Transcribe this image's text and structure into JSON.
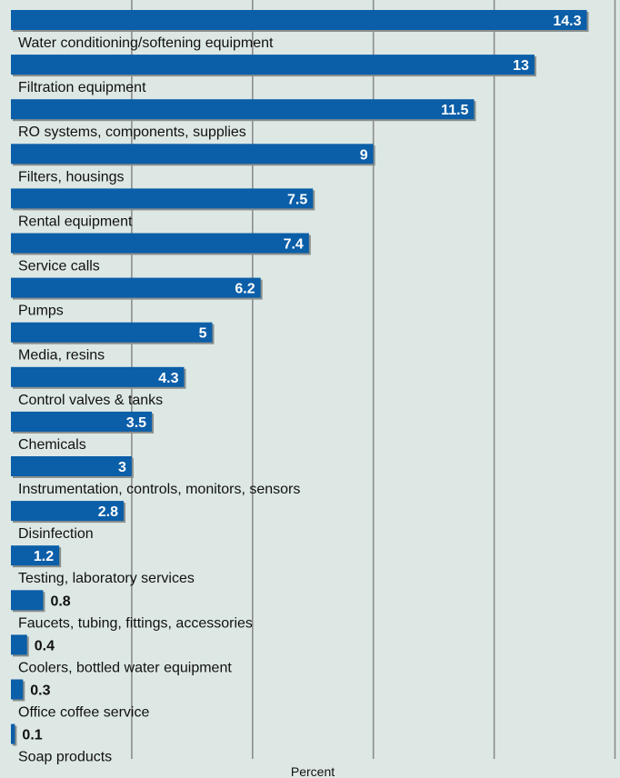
{
  "chart_data": {
    "type": "bar",
    "orientation": "horizontal",
    "xlabel": "Percent",
    "ylabel": "",
    "title": "",
    "xlim": [
      0,
      16.1
    ],
    "grid": "vertical",
    "colors": {
      "background": "#dde8e5",
      "bar": "#0b5ea8",
      "bar_shadow": "#8a8f8c",
      "grid": "#8c8c8c"
    },
    "categories": [
      "Water conditioning/softening equipment",
      "Filtration equipment",
      "RO systems, components, supplies",
      "Filters, housings",
      "Rental equipment",
      "Service calls",
      "Pumps",
      "Media, resins",
      "Control valves & tanks",
      "Chemicals",
      "Instrumentation, controls, monitors, sensors",
      "Disinfection",
      "Testing, laboratory services",
      "Faucets, tubing, fittings, accessories",
      "Coolers, bottled water equipment",
      "Office coffee service",
      "Soap products"
    ],
    "values": [
      14.3,
      13,
      11.5,
      9,
      7.5,
      7.4,
      6.2,
      5,
      4.3,
      3.5,
      3,
      2.8,
      1.2,
      0.8,
      0.4,
      0.3,
      0.1
    ],
    "value_labels": [
      "14.3",
      "13",
      "11.5",
      "9",
      "7.5",
      "7.4",
      "6.2",
      "5",
      "4.3",
      "3.5",
      "3",
      "2.8",
      "1.2",
      "0.8",
      "0.4",
      "0.3",
      "0.1"
    ]
  }
}
